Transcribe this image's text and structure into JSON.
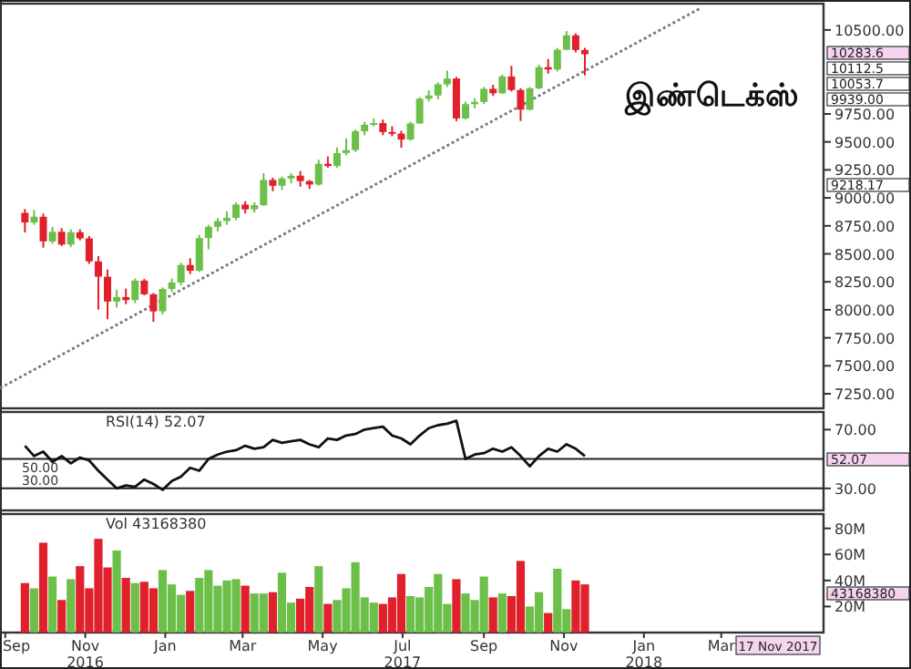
{
  "chart_data": [
    {
      "type": "candlestick",
      "xlim": [
        "2016-08-28",
        "2018-05-18"
      ],
      "ylim": [
        7120,
        10735
      ],
      "tick_labels": "y",
      "yticks": [
        {
          "value": 7250,
          "label": "7250.00"
        },
        {
          "value": 7500,
          "label": "7500.00"
        },
        {
          "value": 7750,
          "label": "7750.00"
        },
        {
          "value": 8000,
          "label": "8000.00"
        },
        {
          "value": 8250,
          "label": "8250.00"
        },
        {
          "value": 8500,
          "label": "8500.00"
        },
        {
          "value": 8750,
          "label": "8750.00"
        },
        {
          "value": 9000,
          "label": "9000.00"
        },
        {
          "value": 9250,
          "label": "9250.00"
        },
        {
          "value": 9500,
          "label": "9500.00"
        },
        {
          "value": 9750,
          "label": "9750.00"
        },
        {
          "value": 10500,
          "label": "10500.00"
        }
      ],
      "x": [
        "2016-09-16",
        "2016-09-23",
        "2016-09-30",
        "2016-10-07",
        "2016-10-14",
        "2016-10-21",
        "2016-10-28",
        "2016-11-04",
        "2016-11-11",
        "2016-11-18",
        "2016-11-25",
        "2016-12-02",
        "2016-12-09",
        "2016-12-16",
        "2016-12-23",
        "2016-12-30",
        "2017-01-06",
        "2017-01-13",
        "2017-01-20",
        "2017-01-27",
        "2017-02-03",
        "2017-02-10",
        "2017-02-17",
        "2017-02-24",
        "2017-03-03",
        "2017-03-10",
        "2017-03-17",
        "2017-03-24",
        "2017-03-31",
        "2017-04-07",
        "2017-04-14",
        "2017-04-21",
        "2017-04-28",
        "2017-05-05",
        "2017-05-12",
        "2017-05-19",
        "2017-05-26",
        "2017-06-02",
        "2017-06-09",
        "2017-06-16",
        "2017-06-23",
        "2017-06-30",
        "2017-07-07",
        "2017-07-14",
        "2017-07-21",
        "2017-07-28",
        "2017-08-04",
        "2017-08-11",
        "2017-08-18",
        "2017-08-25",
        "2017-09-01",
        "2017-09-08",
        "2017-09-15",
        "2017-09-22",
        "2017-09-29",
        "2017-10-06",
        "2017-10-13",
        "2017-10-20",
        "2017-10-27",
        "2017-11-03",
        "2017-11-10",
        "2017-11-17"
      ],
      "ohlc": [
        [
          8866,
          8900,
          8690,
          8780
        ],
        [
          8780,
          8890,
          8760,
          8831
        ],
        [
          8831,
          8860,
          8555,
          8611
        ],
        [
          8611,
          8740,
          8590,
          8697
        ],
        [
          8697,
          8730,
          8570,
          8583
        ],
        [
          8583,
          8720,
          8560,
          8693
        ],
        [
          8693,
          8720,
          8620,
          8638
        ],
        [
          8638,
          8660,
          8410,
          8433
        ],
        [
          8433,
          8480,
          8002,
          8296
        ],
        [
          8296,
          8360,
          7916,
          8074
        ],
        [
          8074,
          8180,
          8020,
          8114
        ],
        [
          8114,
          8190,
          8050,
          8087
        ],
        [
          8087,
          8280,
          8060,
          8261
        ],
        [
          8261,
          8275,
          8130,
          8139
        ],
        [
          8139,
          8150,
          7893,
          7986
        ],
        [
          7986,
          8200,
          7960,
          8186
        ],
        [
          8186,
          8280,
          8160,
          8244
        ],
        [
          8244,
          8420,
          8220,
          8400
        ],
        [
          8400,
          8460,
          8320,
          8349
        ],
        [
          8349,
          8670,
          8340,
          8641
        ],
        [
          8641,
          8760,
          8540,
          8741
        ],
        [
          8741,
          8820,
          8700,
          8793
        ],
        [
          8793,
          8880,
          8760,
          8822
        ],
        [
          8822,
          8960,
          8800,
          8940
        ],
        [
          8940,
          8970,
          8860,
          8897
        ],
        [
          8897,
          8960,
          8870,
          8934
        ],
        [
          8934,
          9220,
          8930,
          9160
        ],
        [
          9160,
          9180,
          9060,
          9108
        ],
        [
          9108,
          9190,
          9070,
          9173
        ],
        [
          9173,
          9220,
          9130,
          9198
        ],
        [
          9198,
          9240,
          9100,
          9150
        ],
        [
          9150,
          9160,
          9080,
          9119
        ],
        [
          9119,
          9340,
          9110,
          9304
        ],
        [
          9304,
          9370,
          9270,
          9285
        ],
        [
          9285,
          9450,
          9270,
          9400
        ],
        [
          9400,
          9532,
          9380,
          9427
        ],
        [
          9427,
          9610,
          9410,
          9595
        ],
        [
          9595,
          9680,
          9560,
          9653
        ],
        [
          9653,
          9710,
          9640,
          9668
        ],
        [
          9668,
          9700,
          9560,
          9588
        ],
        [
          9588,
          9640,
          9550,
          9574
        ],
        [
          9574,
          9600,
          9448,
          9521
        ],
        [
          9521,
          9680,
          9510,
          9665
        ],
        [
          9665,
          9900,
          9660,
          9886
        ],
        [
          9886,
          9960,
          9860,
          9915
        ],
        [
          9915,
          10030,
          9880,
          10014
        ],
        [
          10014,
          10137,
          9990,
          10066
        ],
        [
          10066,
          10080,
          9685,
          9710
        ],
        [
          9710,
          9860,
          9700,
          9837
        ],
        [
          9837,
          9890,
          9800,
          9857
        ],
        [
          9857,
          9990,
          9840,
          9974
        ],
        [
          9974,
          10010,
          9910,
          9934
        ],
        [
          9934,
          10100,
          9930,
          10085
        ],
        [
          10085,
          10180,
          9950,
          9964
        ],
        [
          9964,
          9980,
          9687,
          9788
        ],
        [
          9788,
          9990,
          9780,
          9979
        ],
        [
          9979,
          10190,
          9970,
          10167
        ],
        [
          10167,
          10240,
          10110,
          10147
        ],
        [
          10147,
          10340,
          10130,
          10323
        ],
        [
          10323,
          10490,
          10320,
          10452
        ],
        [
          10452,
          10470,
          10300,
          10321
        ],
        [
          10321,
          10340,
          10094,
          10283
        ]
      ],
      "colors": [
        "#e0202a",
        "#6cc04a",
        "#e0202a",
        "#6cc04a",
        "#e0202a",
        "#6cc04a",
        "#e0202a",
        "#e0202a",
        "#e0202a",
        "#e0202a",
        "#6cc04a",
        "#e0202a",
        "#6cc04a",
        "#e0202a",
        "#e0202a",
        "#6cc04a",
        "#6cc04a",
        "#6cc04a",
        "#e0202a",
        "#6cc04a",
        "#6cc04a",
        "#6cc04a",
        "#6cc04a",
        "#6cc04a",
        "#e0202a",
        "#6cc04a",
        "#6cc04a",
        "#e0202a",
        "#6cc04a",
        "#6cc04a",
        "#e0202a",
        "#e0202a",
        "#6cc04a",
        "#e0202a",
        "#6cc04a",
        "#6cc04a",
        "#6cc04a",
        "#6cc04a",
        "#6cc04a",
        "#e0202a",
        "#e0202a",
        "#e0202a",
        "#6cc04a",
        "#6cc04a",
        "#6cc04a",
        "#6cc04a",
        "#6cc04a",
        "#e0202a",
        "#6cc04a",
        "#6cc04a",
        "#6cc04a",
        "#e0202a",
        "#6cc04a",
        "#e0202a",
        "#e0202a",
        "#6cc04a",
        "#6cc04a",
        "#e0202a",
        "#6cc04a",
        "#6cc04a",
        "#e0202a",
        "#e0202a"
      ],
      "series": [
        {
          "type": "line",
          "x": [
            "2016-08-28",
            "2018-02-14"
          ],
          "values": [
            7300,
            10700
          ],
          "color": "#777777",
          "line_style": "dotted"
        }
      ],
      "annotations": [
        "இண்டெக்ஸ்",
        "10283.6",
        "10112.5",
        "10053.7",
        "9939.00",
        "9218.17"
      ]
    },
    {
      "type": "line",
      "title": "RSI(14) 52.07",
      "xlim": [
        "2016-08-28",
        "2018-05-18"
      ],
      "ylim": [
        15,
        82
      ],
      "tick_labels": "y",
      "yticks": [
        {
          "value": 70,
          "label": "70.00"
        },
        {
          "value": 30,
          "label": "30.00"
        }
      ],
      "ref_lines": [
        {
          "axis": "y",
          "value": 50,
          "label": "50.00"
        },
        {
          "axis": "y",
          "value": 30,
          "label": "30.00"
        }
      ],
      "x": [
        "2016-09-16",
        "2016-09-23",
        "2016-09-30",
        "2016-10-07",
        "2016-10-14",
        "2016-10-21",
        "2016-10-28",
        "2016-11-04",
        "2016-11-11",
        "2016-11-18",
        "2016-11-25",
        "2016-12-02",
        "2016-12-09",
        "2016-12-16",
        "2016-12-23",
        "2016-12-30",
        "2017-01-06",
        "2017-01-13",
        "2017-01-20",
        "2017-01-27",
        "2017-02-03",
        "2017-02-10",
        "2017-02-17",
        "2017-02-24",
        "2017-03-03",
        "2017-03-10",
        "2017-03-17",
        "2017-03-24",
        "2017-03-31",
        "2017-04-07",
        "2017-04-14",
        "2017-04-21",
        "2017-04-28",
        "2017-05-05",
        "2017-05-12",
        "2017-05-19",
        "2017-05-26",
        "2017-06-02",
        "2017-06-09",
        "2017-06-16",
        "2017-06-23",
        "2017-06-30",
        "2017-07-07",
        "2017-07-14",
        "2017-07-21",
        "2017-07-28",
        "2017-08-04",
        "2017-08-11",
        "2017-08-18",
        "2017-08-25",
        "2017-09-01",
        "2017-09-08",
        "2017-09-15",
        "2017-09-22",
        "2017-09-29",
        "2017-10-06",
        "2017-10-13",
        "2017-10-20",
        "2017-10-27",
        "2017-11-03",
        "2017-11-10",
        "2017-11-17"
      ],
      "series": [
        {
          "color": "#111111",
          "values": [
            59,
            52,
            55,
            48,
            52,
            47,
            51,
            49,
            42,
            36,
            30,
            32,
            31,
            36,
            33,
            29,
            35,
            38,
            44,
            42,
            50,
            53,
            55,
            56,
            59,
            57,
            58,
            63,
            61,
            62,
            63,
            60,
            58,
            64,
            63,
            66,
            67,
            70,
            71,
            72,
            66,
            64,
            60,
            66,
            71,
            73,
            74,
            76,
            50,
            53,
            54,
            57,
            55,
            58,
            52,
            45,
            52,
            57,
            55,
            60,
            57,
            52
          ]
        }
      ],
      "annotations": [
        "52.07"
      ]
    },
    {
      "type": "bar",
      "title": "Vol 43168380",
      "xlim": [
        "2016-08-28",
        "2018-05-18"
      ],
      "ylim": [
        0,
        91
      ],
      "yticks": [
        {
          "value": 20,
          "label": "20M"
        },
        {
          "value": 40,
          "label": "40M"
        },
        {
          "value": 60,
          "label": "60M"
        },
        {
          "value": 80,
          "label": "80M"
        }
      ],
      "xticks": [
        {
          "value": "2016-09-01",
          "label": "Sep"
        },
        {
          "value": "2016-11-01",
          "label": "Nov\n2016"
        },
        {
          "value": "2017-01-01",
          "label": "Jan"
        },
        {
          "value": "2017-03-01",
          "label": "Mar"
        },
        {
          "value": "2017-05-01",
          "label": "May"
        },
        {
          "value": "2017-07-01",
          "label": "Jul\n2017"
        },
        {
          "value": "2017-09-01",
          "label": "Sep"
        },
        {
          "value": "2017-11-01",
          "label": "Nov"
        },
        {
          "value": "2018-01-01",
          "label": "Jan\n2018"
        },
        {
          "value": "2018-03-01",
          "label": "Mar"
        }
      ],
      "x": [
        "2016-09-16",
        "2016-09-23",
        "2016-09-30",
        "2016-10-07",
        "2016-10-14",
        "2016-10-21",
        "2016-10-28",
        "2016-11-04",
        "2016-11-11",
        "2016-11-18",
        "2016-11-25",
        "2016-12-02",
        "2016-12-09",
        "2016-12-16",
        "2016-12-23",
        "2016-12-30",
        "2017-01-06",
        "2017-01-13",
        "2017-01-20",
        "2017-01-27",
        "2017-02-03",
        "2017-02-10",
        "2017-02-17",
        "2017-02-24",
        "2017-03-03",
        "2017-03-10",
        "2017-03-17",
        "2017-03-24",
        "2017-03-31",
        "2017-04-07",
        "2017-04-14",
        "2017-04-21",
        "2017-04-28",
        "2017-05-05",
        "2017-05-12",
        "2017-05-19",
        "2017-05-26",
        "2017-06-02",
        "2017-06-09",
        "2017-06-16",
        "2017-06-23",
        "2017-06-30",
        "2017-07-07",
        "2017-07-14",
        "2017-07-21",
        "2017-07-28",
        "2017-08-04",
        "2017-08-11",
        "2017-08-18",
        "2017-08-25",
        "2017-09-01",
        "2017-09-08",
        "2017-09-15",
        "2017-09-22",
        "2017-09-29",
        "2017-10-06",
        "2017-10-13",
        "2017-10-20",
        "2017-10-27",
        "2017-11-03",
        "2017-11-10",
        "2017-11-17"
      ],
      "values": [
        38,
        34,
        69,
        43,
        25,
        41,
        51,
        34,
        72,
        50,
        63,
        42,
        38,
        39,
        34,
        48,
        37,
        29,
        32,
        42,
        48,
        36,
        40,
        41,
        36,
        30,
        30,
        31,
        46,
        23,
        26,
        35,
        51,
        22,
        25,
        34,
        54,
        27,
        23,
        22,
        27,
        45,
        28,
        27,
        35,
        45,
        22,
        41,
        30,
        25,
        43,
        27,
        30,
        28,
        55,
        20,
        31,
        15,
        49,
        18,
        40,
        37
      ],
      "colors": [
        "#e0202a",
        "#6cc04a",
        "#e0202a",
        "#6cc04a",
        "#e0202a",
        "#6cc04a",
        "#e0202a",
        "#e0202a",
        "#e0202a",
        "#e0202a",
        "#6cc04a",
        "#e0202a",
        "#6cc04a",
        "#e0202a",
        "#e0202a",
        "#6cc04a",
        "#6cc04a",
        "#6cc04a",
        "#e0202a",
        "#6cc04a",
        "#6cc04a",
        "#6cc04a",
        "#6cc04a",
        "#6cc04a",
        "#e0202a",
        "#6cc04a",
        "#6cc04a",
        "#e0202a",
        "#6cc04a",
        "#6cc04a",
        "#e0202a",
        "#e0202a",
        "#6cc04a",
        "#e0202a",
        "#6cc04a",
        "#6cc04a",
        "#6cc04a",
        "#6cc04a",
        "#6cc04a",
        "#e0202a",
        "#e0202a",
        "#e0202a",
        "#6cc04a",
        "#6cc04a",
        "#6cc04a",
        "#6cc04a",
        "#6cc04a",
        "#e0202a",
        "#6cc04a",
        "#6cc04a",
        "#6cc04a",
        "#e0202a",
        "#6cc04a",
        "#e0202a",
        "#e0202a",
        "#6cc04a",
        "#6cc04a",
        "#e0202a",
        "#6cc04a",
        "#6cc04a",
        "#e0202a",
        "#e0202a"
      ],
      "annotations": [
        "43168380",
        "17 Nov 2017"
      ]
    }
  ]
}
